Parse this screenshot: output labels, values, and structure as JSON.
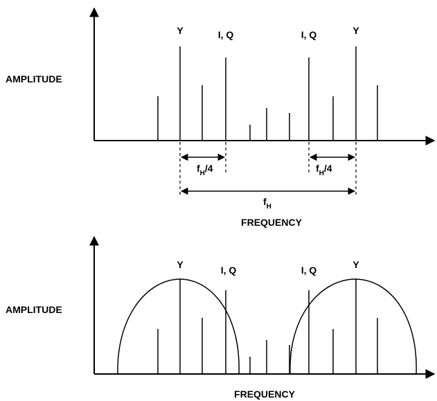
{
  "top": {
    "y_label": "AMPLITUDE",
    "x_label": "FREQUENCY",
    "peak_labels": {
      "y_left": "Y",
      "iq_left": "I, Q",
      "iq_right": "I, Q",
      "y_right": "Y"
    },
    "fh4_left": {
      "base": "f",
      "sub": "H",
      "suffix": "/4"
    },
    "fh4_right": {
      "base": "f",
      "sub": "H",
      "suffix": "/4"
    },
    "fh": {
      "base": "f",
      "sub": "H"
    }
  },
  "bottom": {
    "y_label": "AMPLITUDE",
    "x_label": "FREQUENCY",
    "peak_labels": {
      "y_left": "Y",
      "iq_left": "I, Q",
      "iq_right": "I, Q",
      "y_right": "Y"
    }
  }
}
